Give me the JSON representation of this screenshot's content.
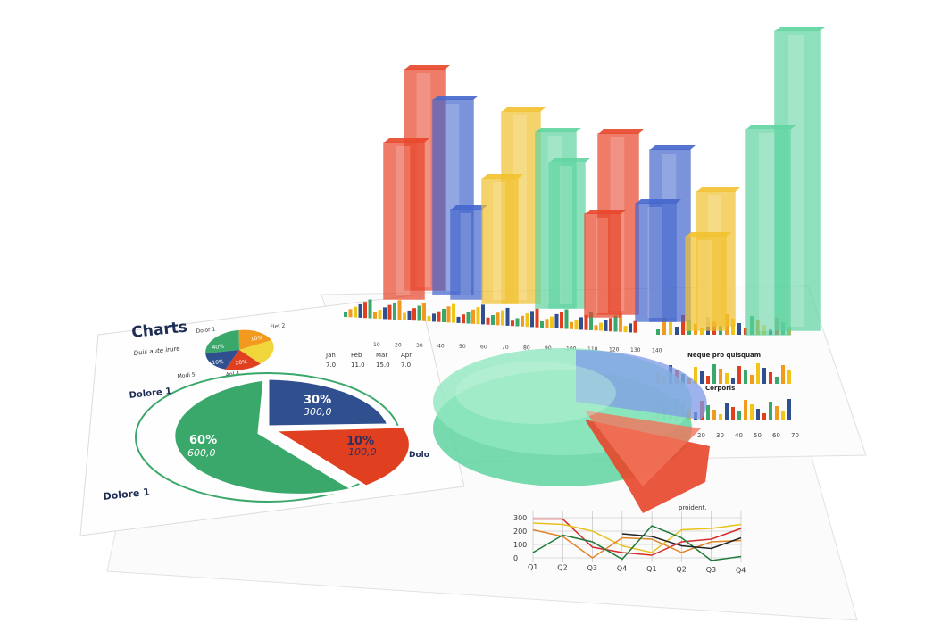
{
  "colors": {
    "green": "#3aa86b",
    "blue": "#2f4f8f",
    "red": "#e0401f",
    "yellow": "#f0c419",
    "orange": "#f29a1d",
    "glass_green": "#5fd4a0",
    "glass_red": "#e8452a",
    "glass_blue": "#4466cc",
    "glass_yellow": "#f2c12e"
  },
  "left_sheet": {
    "title": "Charts",
    "subtitle": "Duis aute irure",
    "small_pie": {
      "labels": [
        "Dolor 1",
        "Flet 2",
        "Modi 5",
        "Anl 4"
      ],
      "values": [
        "40%",
        "10%",
        "10%",
        "20%"
      ]
    },
    "big_pie": {
      "slices": [
        {
          "pct": "60%",
          "value": "600,0"
        },
        {
          "pct": "30%",
          "value": "300,0"
        },
        {
          "pct": "10%",
          "value": "100,0"
        }
      ]
    },
    "caption_top": "Dolore 1",
    "caption_bottom": "Dolore 1",
    "caption_right": "Dolo"
  },
  "middle_sheet": {
    "table_headers": [
      "Jan",
      "Feb",
      "Mar",
      "Apr"
    ],
    "table_values": [
      "7.0",
      "11.0",
      "15.0",
      "7.0"
    ],
    "axis_ticks": [
      "10",
      "20",
      "30",
      "40",
      "50",
      "60",
      "70",
      "80",
      "90",
      "100",
      "110",
      "120",
      "130",
      "140"
    ]
  },
  "right_sheet": {
    "heading_1": "Neque pro quisquam",
    "heading_2": "Corporis",
    "axis_ticks": [
      "10",
      "20",
      "30",
      "40",
      "50",
      "60",
      "70"
    ]
  },
  "line_chart": {
    "y_ticks": [
      "0",
      "100",
      "200",
      "300"
    ],
    "x_ticks": [
      "Q1",
      "Q2",
      "Q3",
      "Q4",
      "Q1",
      "Q2",
      "Q3",
      "Q4"
    ],
    "note": "proident.",
    "series": [
      {
        "color": "#d62b2b",
        "values": [
          290,
          290,
          80,
          40,
          20,
          120,
          140,
          220
        ]
      },
      {
        "color": "#e8c21c",
        "values": [
          260,
          250,
          200,
          90,
          40,
          210,
          220,
          250
        ]
      },
      {
        "color": "#e0852a",
        "values": [
          210,
          160,
          0,
          150,
          140,
          40,
          120,
          130
        ]
      },
      {
        "color": "#1e7a3a",
        "values": [
          40,
          170,
          120,
          -10,
          240,
          150,
          -20,
          10
        ]
      },
      {
        "color": "#222222",
        "values": [
          null,
          null,
          null,
          180,
          160,
          90,
          70,
          150
        ]
      }
    ]
  }
}
